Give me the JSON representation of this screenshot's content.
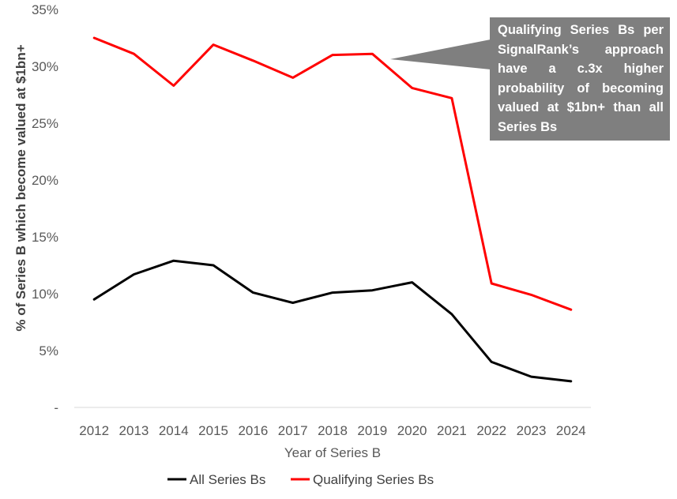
{
  "colors": {
    "all_series": "#000000",
    "qualifying_series": "#ff0000",
    "callout_bg": "#7f7f7f",
    "axis": "#d9d9d9"
  },
  "chart_data": {
    "type": "line",
    "title": "",
    "xlabel": "Year of Series B",
    "ylabel": "% of Series B which become valued at $1bn+",
    "x": [
      "2012",
      "2013",
      "2014",
      "2015",
      "2016",
      "2017",
      "2018",
      "2019",
      "2020",
      "2021",
      "2022",
      "2023",
      "2024"
    ],
    "ylim": [
      0,
      35
    ],
    "y_ticks": [
      {
        "value": 0,
        "label": "-"
      },
      {
        "value": 5,
        "label": "5%"
      },
      {
        "value": 10,
        "label": "10%"
      },
      {
        "value": 15,
        "label": "15%"
      },
      {
        "value": 20,
        "label": "20%"
      },
      {
        "value": 25,
        "label": "25%"
      },
      {
        "value": 30,
        "label": "30%"
      },
      {
        "value": 35,
        "label": "35%"
      }
    ],
    "grid": false,
    "legend_position": "bottom",
    "series": [
      {
        "name": "All Series Bs",
        "color": "#000000",
        "values": [
          9.5,
          11.7,
          12.9,
          12.5,
          10.1,
          9.2,
          10.1,
          10.3,
          11.0,
          8.2,
          4.0,
          2.7,
          2.3
        ]
      },
      {
        "name": "Qualifying Series Bs",
        "color": "#ff0000",
        "values": [
          32.5,
          31.1,
          28.3,
          31.9,
          30.5,
          29.0,
          31.0,
          31.1,
          28.1,
          27.2,
          10.9,
          9.9,
          8.6
        ]
      }
    ],
    "annotations": [
      {
        "text": "Qualifying Series Bs per SignalRank’s approach have a c.3x higher probability of becoming valued at $1bn+ than all Series Bs",
        "points_to": {
          "x": "2019",
          "series": "Qualifying Series Bs"
        }
      }
    ]
  }
}
